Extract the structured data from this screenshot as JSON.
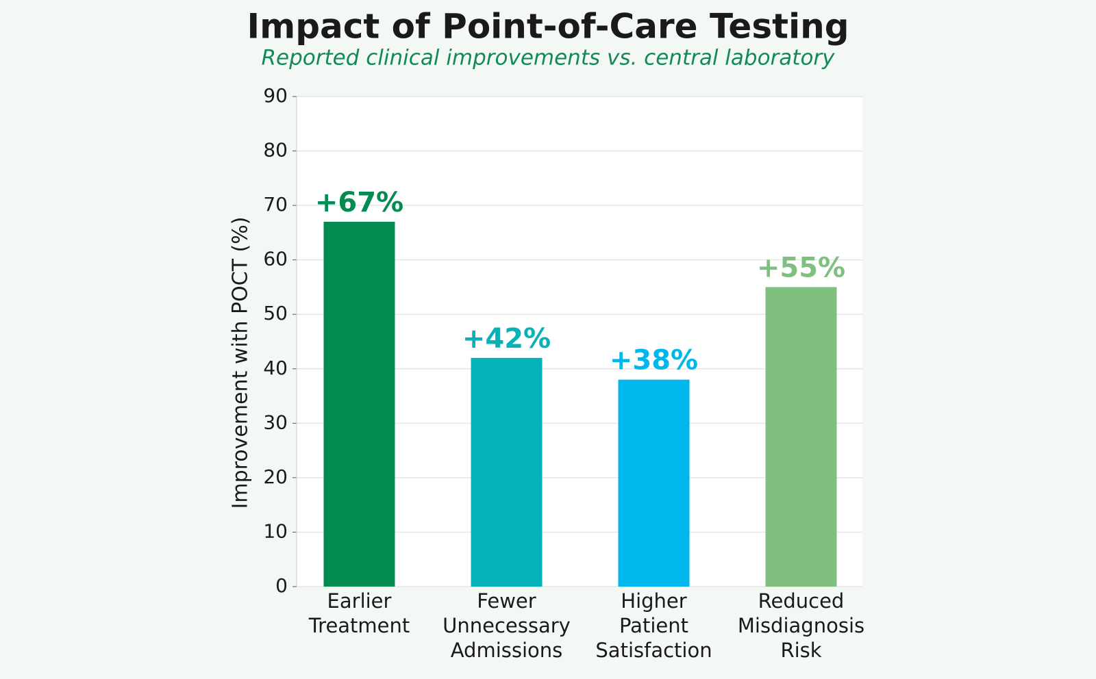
{
  "chart_data": {
    "type": "bar",
    "title": "Impact of Point-of-Care Testing",
    "subtitle": "Reported clinical improvements vs. central laboratory",
    "y_label": "Improvement with POCT (%)",
    "categories": [
      "Earlier Treatment",
      "Fewer Unnecessary Admissions",
      "Higher Patient Satisfaction",
      "Reduced Misdiagnosis Risk"
    ],
    "values": [
      67,
      42,
      38,
      55
    ],
    "value_labels": [
      "+67%",
      "+42%",
      "+38%",
      "+55%"
    ],
    "colors": [
      "#038b52",
      "#05b2b8",
      "#00b7ec",
      "#7fbf80"
    ],
    "ylim": [
      0,
      90
    ],
    "yticks": [
      0,
      10,
      20,
      30,
      40,
      50,
      60,
      70,
      80,
      90
    ],
    "grid": true
  }
}
